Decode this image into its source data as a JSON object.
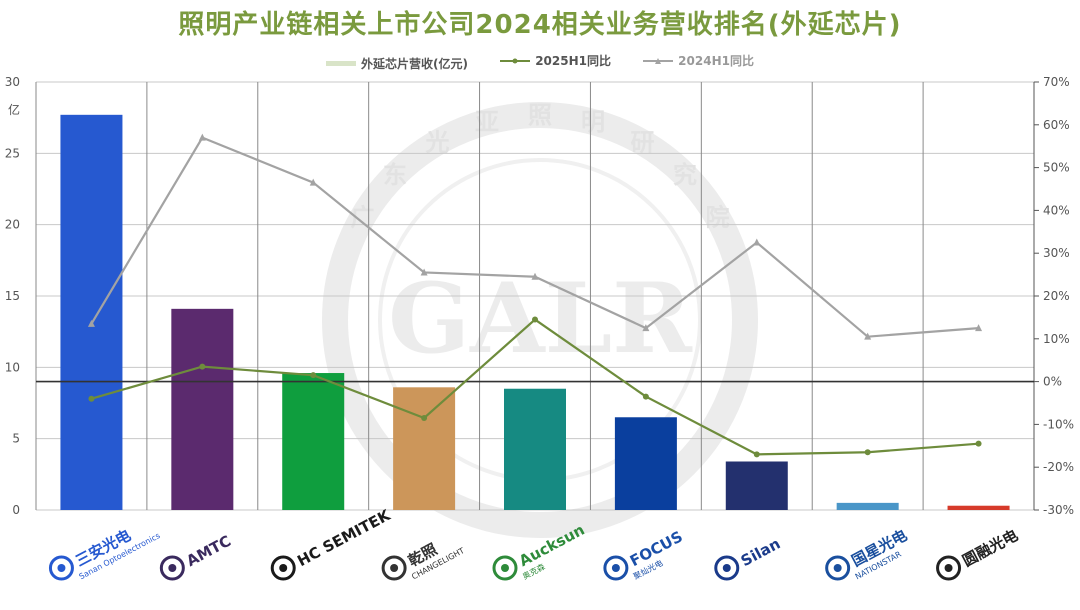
{
  "chart_data": {
    "type": "bar",
    "title": "照明产业链相关上市公司2024相关业务营收排名(外延芯片)",
    "y_left_unit": "亿",
    "y_left_ticks": [
      0,
      5,
      10,
      15,
      20,
      25,
      30
    ],
    "y_right_ticks": [
      "70%",
      "60%",
      "50%",
      "40%",
      "30%",
      "20%",
      "10%",
      "0%",
      "-10%",
      "-20%",
      "-30%"
    ],
    "y_left_range": [
      0,
      30
    ],
    "y_right_range": [
      -30,
      70
    ],
    "legend_position": "top-center",
    "grid": true,
    "categories": [
      "三安光电",
      "AMTC",
      "HC SEMITEK",
      "乾照",
      "Aucksun",
      "FOCUS 聚灿光电",
      "Silan",
      "国星光电",
      "圆融光电"
    ],
    "series": [
      {
        "name": "外延芯片营收(亿元)",
        "kind": "bar",
        "axis": "left",
        "values": [
          27.7,
          14.1,
          9.6,
          8.6,
          8.5,
          6.5,
          3.4,
          0.5,
          0.3
        ],
        "colors": [
          "#2659d0",
          "#5b2a6e",
          "#0f9e3e",
          "#cc965a",
          "#168a82",
          "#0a3f9e",
          "#23306e",
          "#4a96c8",
          "#d63a2a"
        ]
      },
      {
        "name": "2025H1同比",
        "kind": "line",
        "axis": "right",
        "color": "#6e8c3c",
        "values": [
          -4,
          3.5,
          1.5,
          -8.5,
          14.5,
          -3.5,
          -17,
          -16.5,
          -14.5
        ]
      },
      {
        "name": "2024H1同比",
        "kind": "line",
        "axis": "right",
        "color": "#a3a3a3",
        "values": [
          13.5,
          57,
          46.5,
          25.5,
          24.5,
          12.5,
          32.5,
          10.5,
          12.5
        ]
      }
    ]
  },
  "logos": [
    {
      "name": "三安光电",
      "sub": "Sanan Optoelectronics",
      "color": "#2659d0"
    },
    {
      "name": "AMTC",
      "sub": "",
      "color": "#3a2a5e"
    },
    {
      "name": "HC SEMITEK",
      "sub": "",
      "color": "#1a1a1a"
    },
    {
      "name": "乾照",
      "sub": "CHANGELIGHT",
      "color": "#333333"
    },
    {
      "name": "Aucksun",
      "sub": "奥克森",
      "color": "#2e8b3a"
    },
    {
      "name": "FOCUS",
      "sub": "聚灿光电",
      "color": "#1a4fa8"
    },
    {
      "name": "Silan",
      "sub": "",
      "color": "#1a3a8a"
    },
    {
      "name": "国星光电",
      "sub": "NATIONSTAR",
      "color": "#1a4f9e"
    },
    {
      "name": "圆融光电",
      "sub": "",
      "color": "#222222"
    }
  ],
  "watermark": {
    "text": "GALR",
    "ring_text": "广东光亚照明研究院"
  }
}
